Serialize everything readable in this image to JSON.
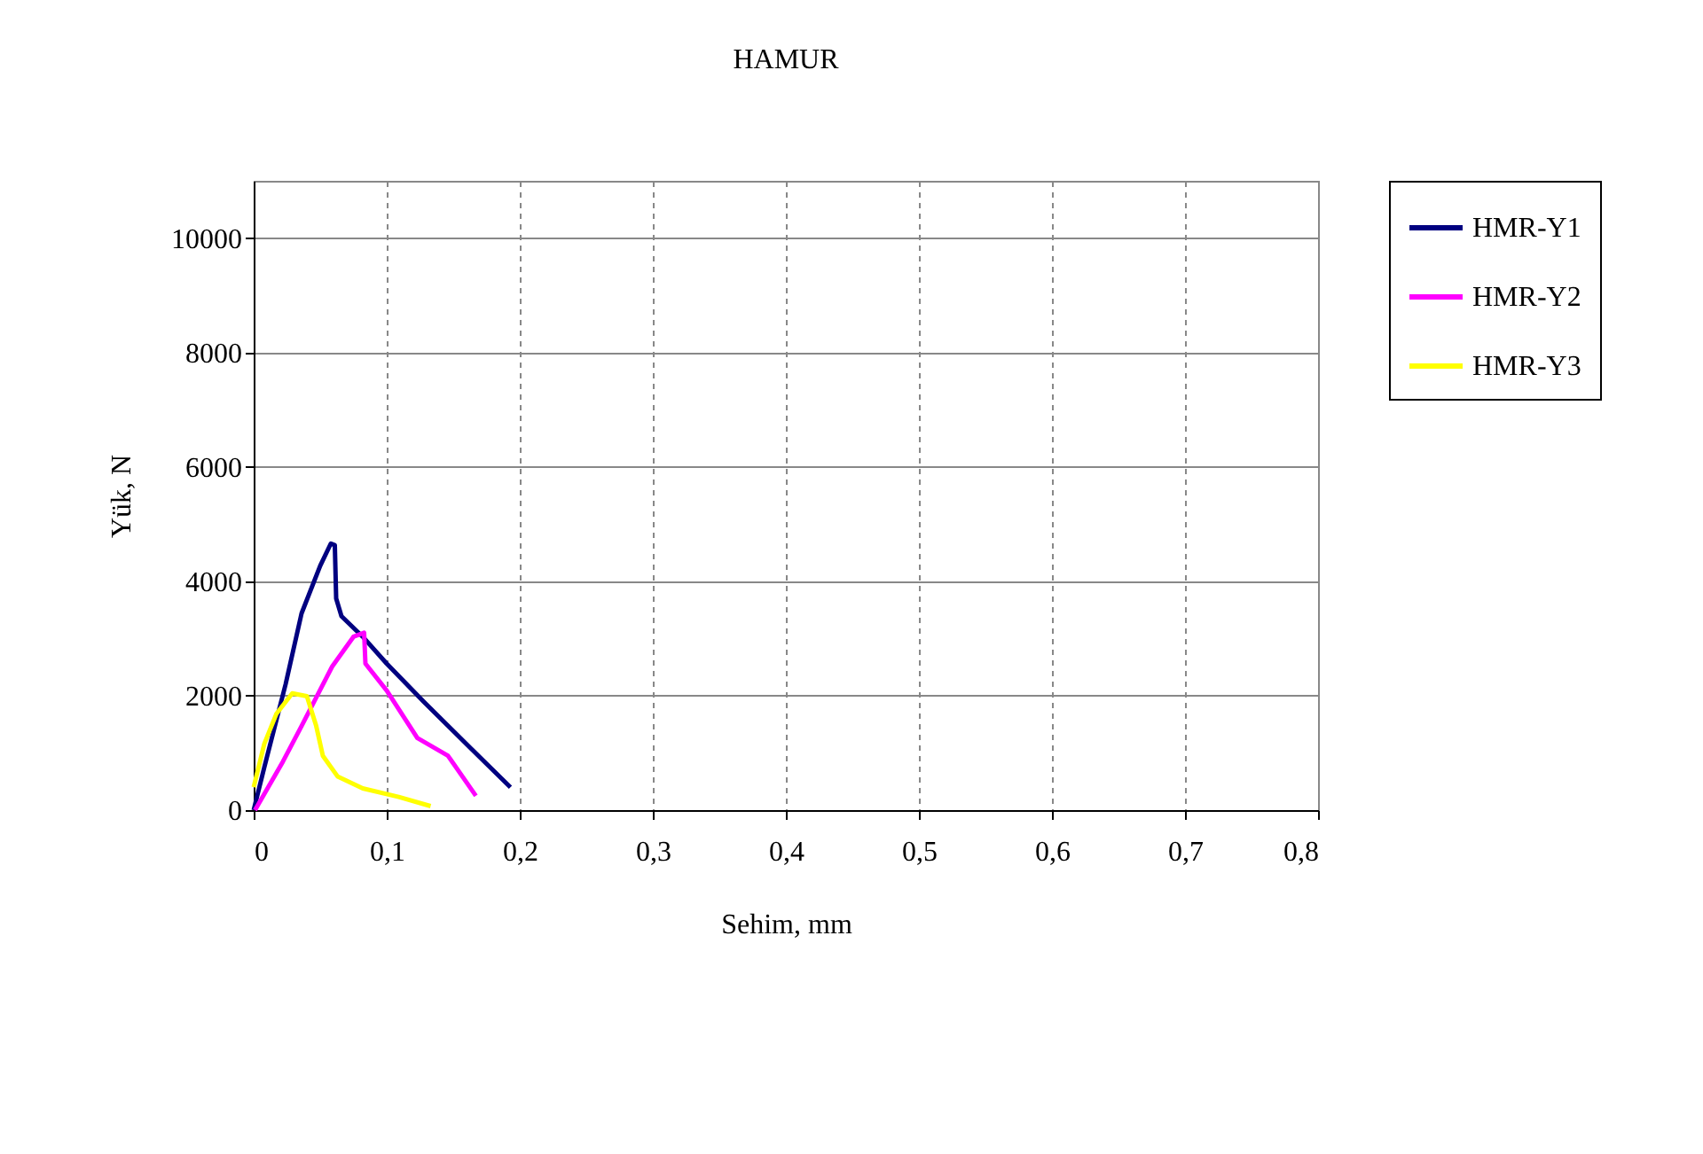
{
  "chart_data": {
    "type": "line",
    "title": "HAMUR",
    "xlabel": "Sehim, mm",
    "ylabel": "Yük, N",
    "xlim": [
      0,
      0.8
    ],
    "ylim": [
      0,
      11000
    ],
    "xticks": [
      0,
      {
        "value": 0.1,
        "label": "0,1"
      },
      {
        "value": 0.2,
        "label": "0,2"
      },
      {
        "value": 0.3,
        "label": "0,3"
      },
      {
        "value": 0.4,
        "label": "0,4"
      },
      {
        "value": 0.5,
        "label": "0,5"
      },
      {
        "value": 0.6,
        "label": "0,6"
      },
      {
        "value": 0.7,
        "label": "0,7"
      },
      {
        "value": 0.8,
        "label": "0,8"
      }
    ],
    "yticks": [
      0,
      2000,
      4000,
      6000,
      8000,
      10000
    ],
    "grid": true,
    "legend": "right",
    "marker": "none",
    "line_style": "solid",
    "series": [
      {
        "name": "HMR-Y1",
        "color": "#000080",
        "x": [
          0,
          0.008,
          0.024,
          0.036,
          0.05,
          0.058,
          0.061,
          0.062,
          0.066,
          0.082,
          0.1,
          0.128,
          0.164,
          0.193
        ],
        "values": [
          0,
          750,
          2200,
          3440,
          4270,
          4660,
          4630,
          3700,
          3390,
          3030,
          2560,
          1890,
          1060,
          400
        ]
      },
      {
        "name": "HMR-Y2",
        "color": "#ff00ff",
        "x": [
          0.001,
          0.022,
          0.036,
          0.059,
          0.075,
          0.083,
          0.084,
          0.1,
          0.123,
          0.146,
          0.167
        ],
        "values": [
          0,
          850,
          1470,
          2510,
          3030,
          3100,
          2560,
          2090,
          1260,
          950,
          250
        ]
      },
      {
        "name": "HMR-Y3",
        "color": "#ffff00",
        "x": [
          0,
          0.008,
          0.017,
          0.029,
          0.04,
          0.047,
          0.052,
          0.063,
          0.082,
          0.109,
          0.133
        ],
        "values": [
          400,
          1160,
          1680,
          2040,
          1990,
          1470,
          950,
          590,
          380,
          230,
          70
        ]
      }
    ]
  }
}
